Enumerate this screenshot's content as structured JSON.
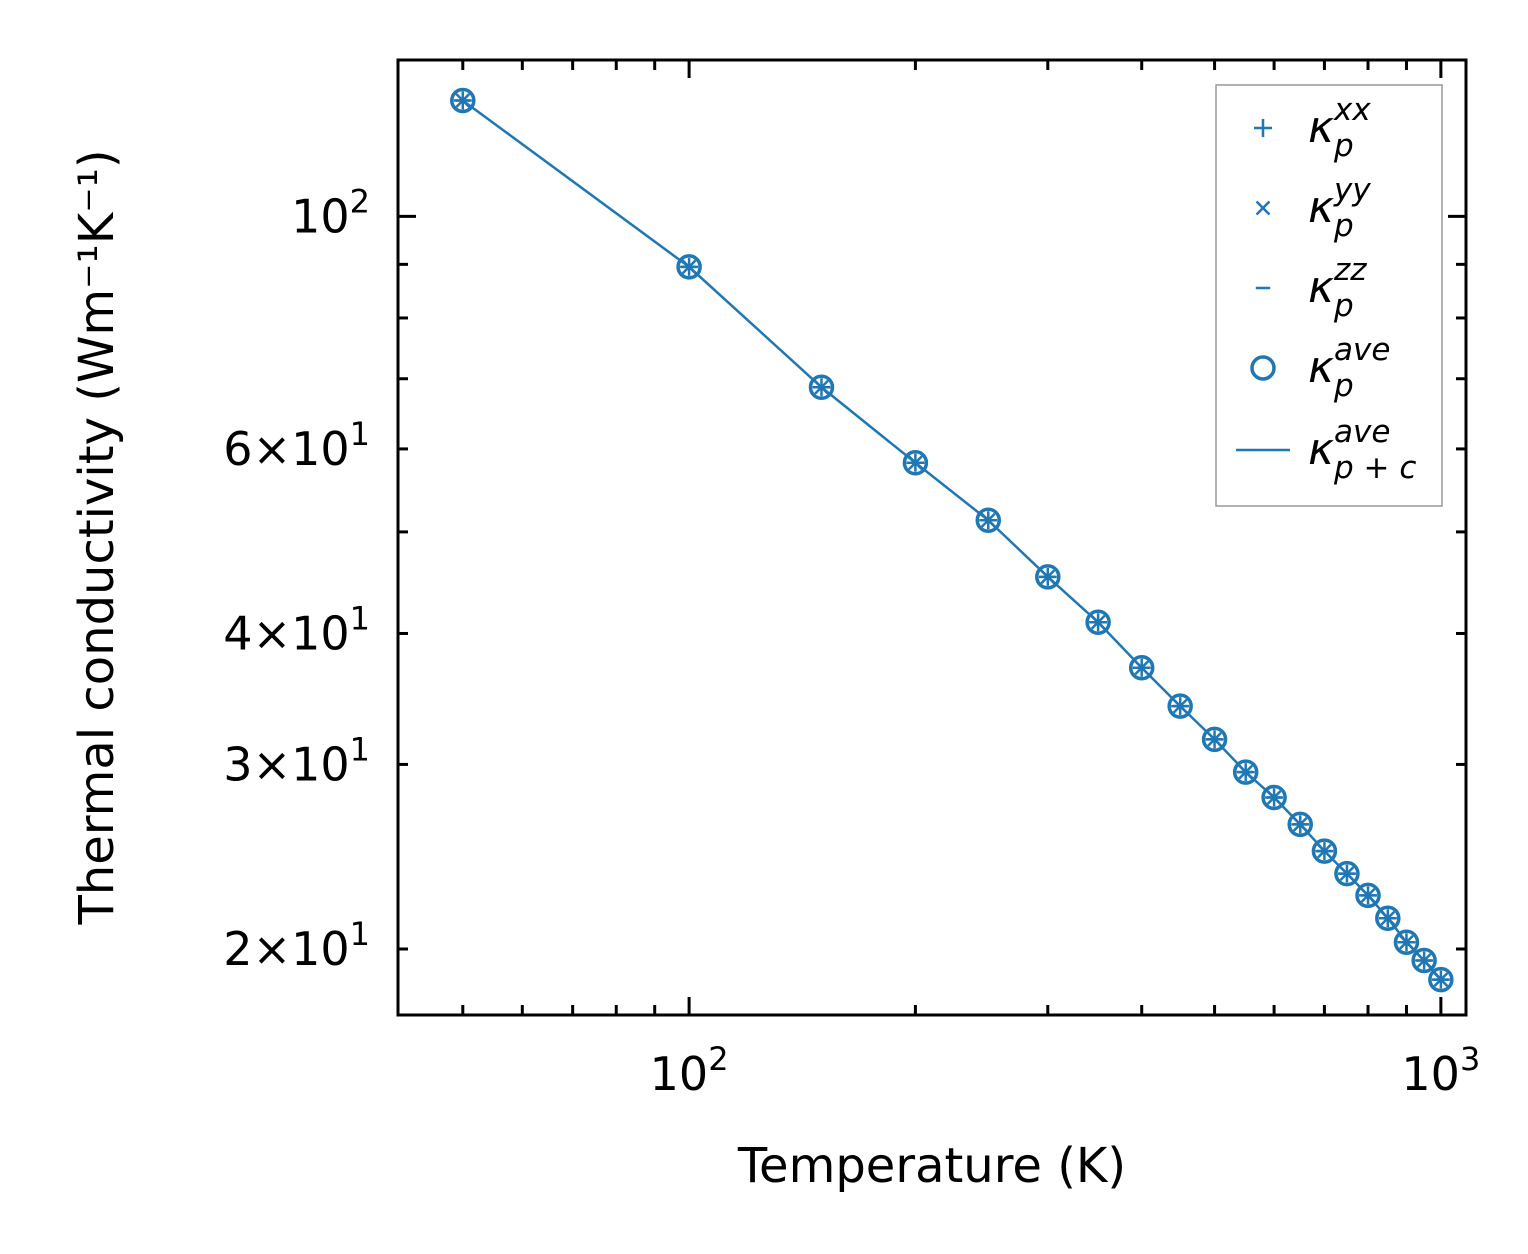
{
  "chart_data": {
    "type": "scatter",
    "x_scale": "log",
    "y_scale": "log",
    "xlabel": "Temperature (K)",
    "ylabel": "Thermal conductivity (Wm⁻¹K⁻¹)",
    "xlim": [
      41,
      1080
    ],
    "ylim": [
      17.3,
      141
    ],
    "grid": false,
    "legend_position": "top-right",
    "color": "#1f77b4",
    "x_tick_labels": [
      {
        "value": 100,
        "base": "10",
        "exp": "2"
      },
      {
        "value": 1000,
        "base": "10",
        "exp": "3"
      }
    ],
    "y_tick_labels": [
      {
        "value": 20,
        "mantissa": "2",
        "base": "10",
        "exp": "1"
      },
      {
        "value": 30,
        "mantissa": "3",
        "base": "10",
        "exp": "1"
      },
      {
        "value": 40,
        "mantissa": "4",
        "base": "10",
        "exp": "1"
      },
      {
        "value": 60,
        "mantissa": "6",
        "base": "10",
        "exp": "1"
      },
      {
        "value": 100,
        "mantissa": "",
        "base": "10",
        "exp": "2"
      }
    ],
    "x": [
      50,
      100,
      150,
      200,
      250,
      300,
      350,
      400,
      450,
      500,
      550,
      600,
      650,
      700,
      750,
      800,
      850,
      900,
      950,
      1000
    ],
    "series": [
      {
        "name": "xx",
        "legend": {
          "base": "κ",
          "sub": "p",
          "sup": "xx"
        },
        "marker": "plus",
        "values": [
          129,
          89.5,
          68.7,
          58.2,
          51.3,
          45.3,
          41.0,
          37.1,
          34.1,
          31.7,
          29.5,
          27.9,
          26.3,
          24.8,
          23.6,
          22.5,
          21.4,
          20.3,
          19.5,
          18.7
        ]
      },
      {
        "name": "yy",
        "legend": {
          "base": "κ",
          "sub": "p",
          "sup": "yy"
        },
        "marker": "x",
        "values": [
          129,
          89.5,
          68.7,
          58.2,
          51.3,
          45.3,
          41.0,
          37.1,
          34.1,
          31.7,
          29.5,
          27.9,
          26.3,
          24.8,
          23.6,
          22.5,
          21.4,
          20.3,
          19.5,
          18.7
        ]
      },
      {
        "name": "zz",
        "legend": {
          "base": "κ",
          "sub": "p",
          "sup": "zz"
        },
        "marker": "hline",
        "values": [
          129,
          89.5,
          68.7,
          58.2,
          51.3,
          45.3,
          41.0,
          37.1,
          34.1,
          31.7,
          29.5,
          27.9,
          26.3,
          24.8,
          23.6,
          22.5,
          21.4,
          20.3,
          19.5,
          18.7
        ]
      },
      {
        "name": "ave",
        "legend": {
          "base": "κ",
          "sub": "p",
          "sup": "ave"
        },
        "marker": "circle",
        "values": [
          129,
          89.5,
          68.7,
          58.2,
          51.3,
          45.3,
          41.0,
          37.1,
          34.1,
          31.7,
          29.5,
          27.9,
          26.3,
          24.8,
          23.6,
          22.5,
          21.4,
          20.3,
          19.5,
          18.7
        ]
      },
      {
        "name": "p+c ave",
        "legend": {
          "base": "κ",
          "sub": "p + c",
          "sup": "ave"
        },
        "marker": "line",
        "values": [
          129,
          89.5,
          68.7,
          58.2,
          51.3,
          45.3,
          41.0,
          37.1,
          34.1,
          31.7,
          29.5,
          27.9,
          26.3,
          24.8,
          23.6,
          22.5,
          21.4,
          20.3,
          19.5,
          18.7
        ]
      }
    ]
  }
}
